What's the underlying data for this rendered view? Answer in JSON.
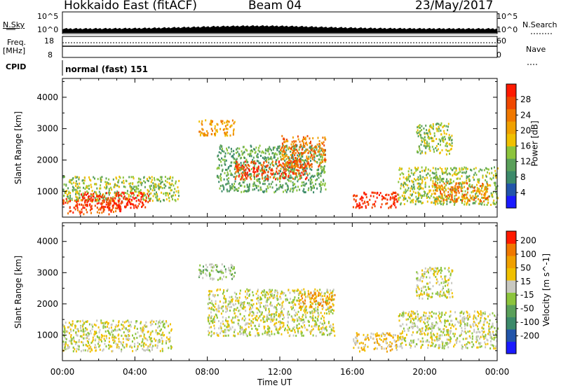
{
  "header": {
    "station": "Hokkaido East (fitACF)",
    "beam": "Beam 04",
    "date": "23/May/2017"
  },
  "top_panels": {
    "nsky_label": "N.Sky",
    "nsearch_label": "N.Search",
    "freq_label_1": "Freq.",
    "freq_label_2": "[MHz]",
    "nave_label": "Nave",
    "cpid_label": "CPID",
    "cpid_value": "normal (fast) 151",
    "nsky_ticks": [
      "10^5",
      "10^0"
    ],
    "nsearch_ticks": [
      "10^5",
      "10^0"
    ],
    "freq_ticks": [
      "18",
      "8"
    ],
    "nave_ticks": [
      "60",
      "0"
    ]
  },
  "chart_data": [
    {
      "type": "heatmap",
      "name": "power-panel",
      "xlabel": "",
      "ylabel": "Slant Range [km]",
      "x_range_hours": [
        0,
        24
      ],
      "ylim": [
        180,
        4600
      ],
      "y_ticks": [
        "1000",
        "2000",
        "3000",
        "4000"
      ],
      "colorbar": {
        "label": "Power [dB]",
        "ticks": [
          "4",
          "8",
          "12",
          "16",
          "20",
          "24",
          "28"
        ],
        "colors": [
          "#1a1aff",
          "#2255aa",
          "#3c8a6a",
          "#5aa05a",
          "#8cc43c",
          "#f0c000",
          "#f0a000",
          "#f07800",
          "#f04800",
          "#ff1a00"
        ]
      },
      "regions": [
        {
          "x": [
            0.0,
            3.2
          ],
          "y": [
            300,
            800
          ],
          "level": 8
        },
        {
          "x": [
            0.0,
            6.4
          ],
          "y": [
            700,
            1500
          ],
          "level": 4
        },
        {
          "x": [
            1.0,
            4.8
          ],
          "y": [
            500,
            1000
          ],
          "level": 9
        },
        {
          "x": [
            7.5,
            9.5
          ],
          "y": [
            2800,
            3300
          ],
          "level": 6
        },
        {
          "x": [
            8.5,
            14.5
          ],
          "y": [
            1000,
            2500
          ],
          "level": 3
        },
        {
          "x": [
            9.5,
            13.5
          ],
          "y": [
            1400,
            2000
          ],
          "level": 8
        },
        {
          "x": [
            12.0,
            14.5
          ],
          "y": [
            1800,
            2800
          ],
          "level": 7
        },
        {
          "x": [
            16.0,
            18.5
          ],
          "y": [
            500,
            1000
          ],
          "level": 9
        },
        {
          "x": [
            19.5,
            21.5
          ],
          "y": [
            2200,
            3200
          ],
          "level": 4
        },
        {
          "x": [
            18.5,
            24.0
          ],
          "y": [
            600,
            1800
          ],
          "level": 4
        },
        {
          "x": [
            20.5,
            23.5
          ],
          "y": [
            700,
            1300
          ],
          "level": 7
        }
      ]
    },
    {
      "type": "heatmap",
      "name": "velocity-panel",
      "xlabel": "Time UT",
      "ylabel": "Slant Range [km]",
      "x_range_hours": [
        0,
        24
      ],
      "ylim": [
        180,
        4600
      ],
      "y_ticks": [
        "1000",
        "2000",
        "3000",
        "4000"
      ],
      "x_ticks": [
        "00:00",
        "04:00",
        "08:00",
        "12:00",
        "16:00",
        "20:00",
        "00:00"
      ],
      "colorbar": {
        "label": "Velocity [m s^-1]",
        "ticks": [
          "200",
          "100",
          "50",
          "15",
          "-15",
          "-50",
          "-100",
          "-200"
        ],
        "colors": [
          "#1a1aff",
          "#2255aa",
          "#3c8a6a",
          "#5aa05a",
          "#8cc43c",
          "#c8c8c0",
          "#f0c000",
          "#f0a000",
          "#f07800",
          "#ff1a00"
        ]
      },
      "regions": [
        {
          "x": [
            0.0,
            6.0
          ],
          "y": [
            500,
            1500
          ],
          "level": 5
        },
        {
          "x": [
            7.5,
            9.5
          ],
          "y": [
            2800,
            3300
          ],
          "level": 4
        },
        {
          "x": [
            8.0,
            15.0
          ],
          "y": [
            1000,
            2500
          ],
          "level": 5
        },
        {
          "x": [
            13.0,
            15.0
          ],
          "y": [
            1900,
            2400
          ],
          "level": 7
        },
        {
          "x": [
            16.0,
            18.5
          ],
          "y": [
            500,
            1100
          ],
          "level": 6
        },
        {
          "x": [
            19.5,
            21.5
          ],
          "y": [
            2200,
            3200
          ],
          "level": 5
        },
        {
          "x": [
            18.5,
            24.0
          ],
          "y": [
            600,
            1800
          ],
          "level": 5
        }
      ]
    }
  ]
}
